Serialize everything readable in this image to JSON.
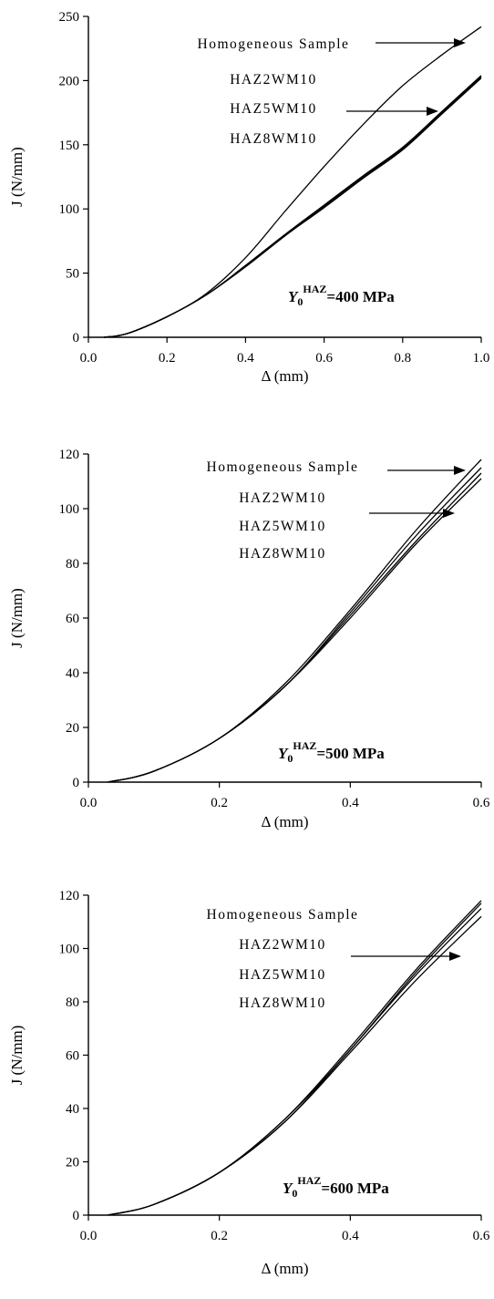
{
  "chart_data": [
    {
      "type": "line",
      "xlabel": "Δ (mm)",
      "ylabel": "J (N/mm)",
      "xlim": [
        0,
        1.0
      ],
      "ylim": [
        0,
        250
      ],
      "xticks": [
        "0.0",
        "0.2",
        "0.4",
        "0.6",
        "0.8",
        "1.0"
      ],
      "yticks": [
        "0",
        "50",
        "100",
        "150",
        "200",
        "250"
      ],
      "annotation": {
        "base": "Y",
        "sub": "0",
        "sup": "HAZ",
        "rest": "=400 MPa"
      },
      "legend_labels": [
        "Homogeneous Sample",
        "HAZ2WM10",
        "HAZ5WM10",
        "HAZ8WM10"
      ],
      "series": [
        {
          "name": "Homogeneous Sample",
          "x": [
            0.04,
            0.1,
            0.2,
            0.3,
            0.4,
            0.5,
            0.6,
            0.7,
            0.8,
            0.9,
            1.0
          ],
          "y": [
            0,
            3,
            16,
            34,
            62,
            98,
            133,
            166,
            196,
            220,
            242
          ]
        },
        {
          "name": "HAZ2WM10",
          "x": [
            0.04,
            0.1,
            0.2,
            0.3,
            0.4,
            0.5,
            0.6,
            0.7,
            0.8,
            0.9,
            1.0
          ],
          "y": [
            0,
            3,
            16,
            33,
            56,
            80,
            103,
            126,
            148,
            176,
            204
          ]
        },
        {
          "name": "HAZ5WM10",
          "x": [
            0.04,
            0.1,
            0.2,
            0.3,
            0.4,
            0.5,
            0.6,
            0.7,
            0.8,
            0.9,
            1.0
          ],
          "y": [
            0,
            3,
            16,
            33,
            55,
            79,
            102,
            125,
            147,
            175,
            203
          ]
        },
        {
          "name": "HAZ8WM10",
          "x": [
            0.04,
            0.1,
            0.2,
            0.3,
            0.4,
            0.5,
            0.6,
            0.7,
            0.8,
            0.9,
            1.0
          ],
          "y": [
            0,
            3,
            16,
            33,
            55,
            79,
            101,
            124,
            146,
            174,
            202
          ]
        }
      ]
    },
    {
      "type": "line",
      "xlabel": "Δ (mm)",
      "ylabel": "J (N/mm)",
      "xlim": [
        0,
        0.6
      ],
      "ylim": [
        0,
        120
      ],
      "xticks": [
        "0.0",
        "0.2",
        "0.4",
        "0.6"
      ],
      "yticks": [
        "0",
        "20",
        "40",
        "60",
        "80",
        "100",
        "120"
      ],
      "annotation": {
        "base": "Y",
        "sub": "0",
        "sup": "HAZ",
        "rest": "=500 MPa"
      },
      "legend_labels": [
        "Homogeneous Sample",
        "HAZ2WM10",
        "HAZ5WM10",
        "HAZ8WM10"
      ],
      "series": [
        {
          "name": "Homogeneous Sample",
          "x": [
            0.03,
            0.1,
            0.2,
            0.3,
            0.4,
            0.5,
            0.6
          ],
          "y": [
            0,
            4,
            16,
            36,
            63,
            92,
            118
          ]
        },
        {
          "name": "HAZ2WM10",
          "x": [
            0.03,
            0.1,
            0.2,
            0.3,
            0.4,
            0.5,
            0.6
          ],
          "y": [
            0,
            4,
            16,
            35,
            62,
            90,
            115
          ]
        },
        {
          "name": "HAZ5WM10",
          "x": [
            0.03,
            0.1,
            0.2,
            0.3,
            0.4,
            0.5,
            0.6
          ],
          "y": [
            0,
            4,
            16,
            35,
            61,
            88,
            113
          ]
        },
        {
          "name": "HAZ8WM10",
          "x": [
            0.03,
            0.1,
            0.2,
            0.3,
            0.4,
            0.5,
            0.6
          ],
          "y": [
            0,
            4,
            16,
            35,
            60,
            87,
            111
          ]
        }
      ]
    },
    {
      "type": "line",
      "xlabel": "Δ (mm)",
      "ylabel": "J (N/mm)",
      "xlim": [
        0,
        0.6
      ],
      "ylim": [
        0,
        120
      ],
      "xticks": [
        "0.0",
        "0.2",
        "0.4",
        "0.6"
      ],
      "yticks": [
        "0",
        "20",
        "40",
        "60",
        "80",
        "100",
        "120"
      ],
      "annotation": {
        "base": "Y",
        "sub": "0",
        "sup": "HAZ",
        "rest": "=600 MPa"
      },
      "legend_labels": [
        "Homogeneous Sample",
        "HAZ2WM10",
        "HAZ5WM10",
        "HAZ8WM10"
      ],
      "series": [
        {
          "name": "Homogeneous Sample",
          "x": [
            0.03,
            0.1,
            0.2,
            0.3,
            0.4,
            0.5,
            0.6
          ],
          "y": [
            0,
            4,
            16,
            36,
            63,
            92,
            118
          ]
        },
        {
          "name": "HAZ2WM10",
          "x": [
            0.03,
            0.1,
            0.2,
            0.3,
            0.4,
            0.5,
            0.6
          ],
          "y": [
            0,
            4,
            16,
            36,
            62,
            91,
            117
          ]
        },
        {
          "name": "HAZ5WM10",
          "x": [
            0.03,
            0.1,
            0.2,
            0.3,
            0.4,
            0.5,
            0.6
          ],
          "y": [
            0,
            4,
            16,
            35,
            62,
            90,
            115
          ]
        },
        {
          "name": "HAZ8WM10",
          "x": [
            0.03,
            0.1,
            0.2,
            0.3,
            0.4,
            0.5,
            0.6
          ],
          "y": [
            0,
            4,
            16,
            35,
            61,
            88,
            112
          ]
        }
      ]
    }
  ]
}
